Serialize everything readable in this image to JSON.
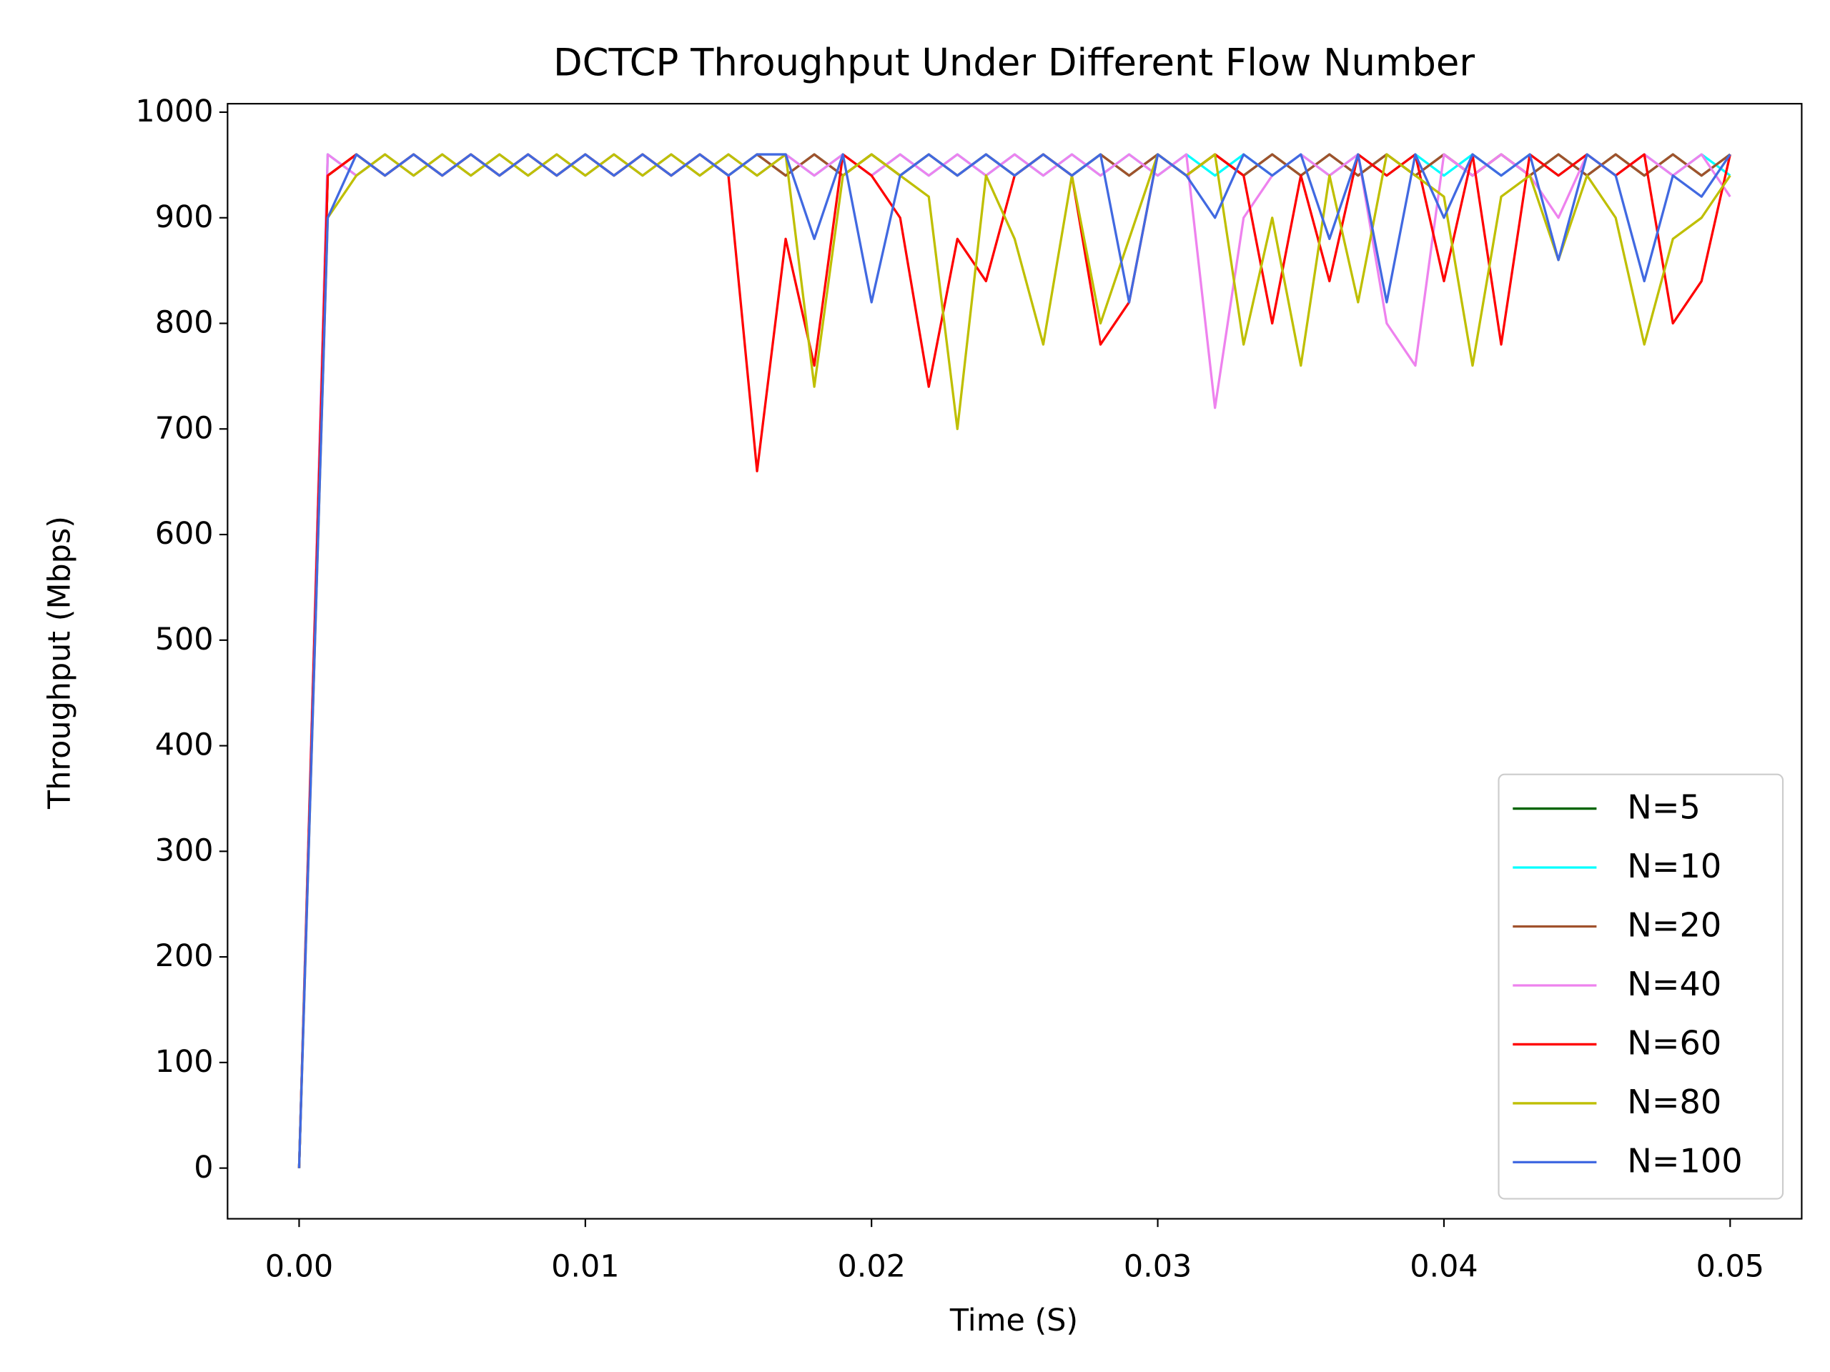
{
  "chart_data": {
    "type": "line",
    "title": "DCTCP Throughput Under Different Flow Number",
    "x_label": "Time (S)",
    "y_label": "Throughput (Mbps)",
    "x": [
      0,
      0.001,
      0.002,
      0.003,
      0.004,
      0.005,
      0.006,
      0.007,
      0.008,
      0.009,
      0.01,
      0.011,
      0.012,
      0.013,
      0.014,
      0.015,
      0.016,
      0.017,
      0.018,
      0.019,
      0.02,
      0.021,
      0.022,
      0.023,
      0.024,
      0.025,
      0.026,
      0.027,
      0.028,
      0.029,
      0.03,
      0.031,
      0.032,
      0.033,
      0.034,
      0.035,
      0.036,
      0.037,
      0.038,
      0.039,
      0.04,
      0.041,
      0.042,
      0.043,
      0.044,
      0.045,
      0.046,
      0.047,
      0.048,
      0.049,
      0.05
    ],
    "series": [
      {
        "name": "N=5",
        "color": "#006400",
        "values": [
          0,
          940,
          960,
          940,
          960,
          940,
          960,
          940,
          960,
          940,
          960,
          940,
          960,
          940,
          960,
          940,
          960,
          940,
          960,
          940,
          960,
          940,
          960,
          940,
          960,
          940,
          960,
          940,
          960,
          940,
          960,
          940,
          960,
          940,
          960,
          940,
          960,
          940,
          960,
          940,
          960,
          940,
          960,
          940,
          960,
          940,
          960,
          940,
          960,
          940,
          960
        ]
      },
      {
        "name": "N=10",
        "color": "#00ffff",
        "values": [
          0,
          960,
          940,
          960,
          940,
          960,
          940,
          960,
          940,
          960,
          940,
          960,
          940,
          960,
          940,
          960,
          940,
          960,
          940,
          960,
          940,
          960,
          940,
          960,
          940,
          960,
          940,
          960,
          940,
          960,
          940,
          960,
          940,
          960,
          940,
          960,
          940,
          960,
          940,
          960,
          940,
          960,
          940,
          960,
          940,
          960,
          940,
          960,
          940,
          960,
          940
        ]
      },
      {
        "name": "N=20",
        "color": "#a0522d",
        "values": [
          0,
          940,
          960,
          940,
          960,
          940,
          960,
          940,
          960,
          940,
          960,
          940,
          960,
          940,
          960,
          940,
          960,
          940,
          960,
          940,
          960,
          940,
          960,
          940,
          960,
          940,
          960,
          940,
          960,
          940,
          960,
          940,
          960,
          940,
          960,
          940,
          960,
          940,
          960,
          940,
          960,
          940,
          960,
          940,
          960,
          940,
          960,
          940,
          960,
          940,
          960
        ]
      },
      {
        "name": "N=40",
        "color": "#ee82ee",
        "values": [
          0,
          960,
          940,
          960,
          940,
          960,
          940,
          960,
          940,
          960,
          940,
          960,
          940,
          960,
          940,
          960,
          940,
          960,
          940,
          960,
          940,
          960,
          940,
          960,
          940,
          960,
          940,
          960,
          940,
          960,
          940,
          960,
          720,
          900,
          940,
          960,
          940,
          960,
          800,
          760,
          960,
          940,
          960,
          940,
          900,
          960,
          940,
          960,
          940,
          960,
          920
        ]
      },
      {
        "name": "N=60",
        "color": "#ff0000",
        "values": [
          0,
          940,
          960,
          940,
          960,
          940,
          960,
          940,
          960,
          940,
          960,
          940,
          960,
          940,
          960,
          940,
          660,
          880,
          760,
          960,
          940,
          900,
          740,
          880,
          840,
          940,
          960,
          940,
          780,
          820,
          960,
          940,
          960,
          940,
          800,
          940,
          840,
          960,
          940,
          960,
          840,
          960,
          780,
          960,
          940,
          960,
          940,
          960,
          800,
          840,
          960
        ]
      },
      {
        "name": "N=80",
        "color": "#bfbf00",
        "values": [
          0,
          900,
          940,
          960,
          940,
          960,
          940,
          960,
          940,
          960,
          940,
          960,
          940,
          960,
          940,
          960,
          940,
          960,
          740,
          940,
          960,
          940,
          920,
          700,
          940,
          880,
          780,
          940,
          800,
          880,
          960,
          940,
          960,
          780,
          900,
          760,
          940,
          820,
          960,
          940,
          920,
          760,
          920,
          940,
          860,
          940,
          900,
          780,
          880,
          900,
          940
        ]
      },
      {
        "name": "N=100",
        "color": "#4169e1",
        "values": [
          0,
          900,
          960,
          940,
          960,
          940,
          960,
          940,
          960,
          940,
          960,
          940,
          960,
          940,
          960,
          940,
          960,
          960,
          880,
          960,
          820,
          940,
          960,
          940,
          960,
          940,
          960,
          940,
          960,
          820,
          960,
          940,
          900,
          960,
          940,
          960,
          880,
          960,
          820,
          960,
          900,
          960,
          940,
          960,
          860,
          960,
          940,
          840,
          940,
          920,
          960
        ]
      }
    ],
    "xlim": [
      -0.0025,
      0.0525
    ],
    "xticks": [
      {
        "value": 0,
        "label": "0.00"
      },
      {
        "value": 0.01,
        "label": "0.01"
      },
      {
        "value": 0.02,
        "label": "0.02"
      },
      {
        "value": 0.03,
        "label": "0.03"
      },
      {
        "value": 0.04,
        "label": "0.04"
      },
      {
        "value": 0.05,
        "label": "0.05"
      }
    ],
    "ylim": [
      -48,
      1008
    ],
    "yticks": [
      0,
      100,
      200,
      300,
      400,
      500,
      600,
      700,
      800,
      900,
      1000
    ],
    "grid": false,
    "legend": "lower right"
  }
}
